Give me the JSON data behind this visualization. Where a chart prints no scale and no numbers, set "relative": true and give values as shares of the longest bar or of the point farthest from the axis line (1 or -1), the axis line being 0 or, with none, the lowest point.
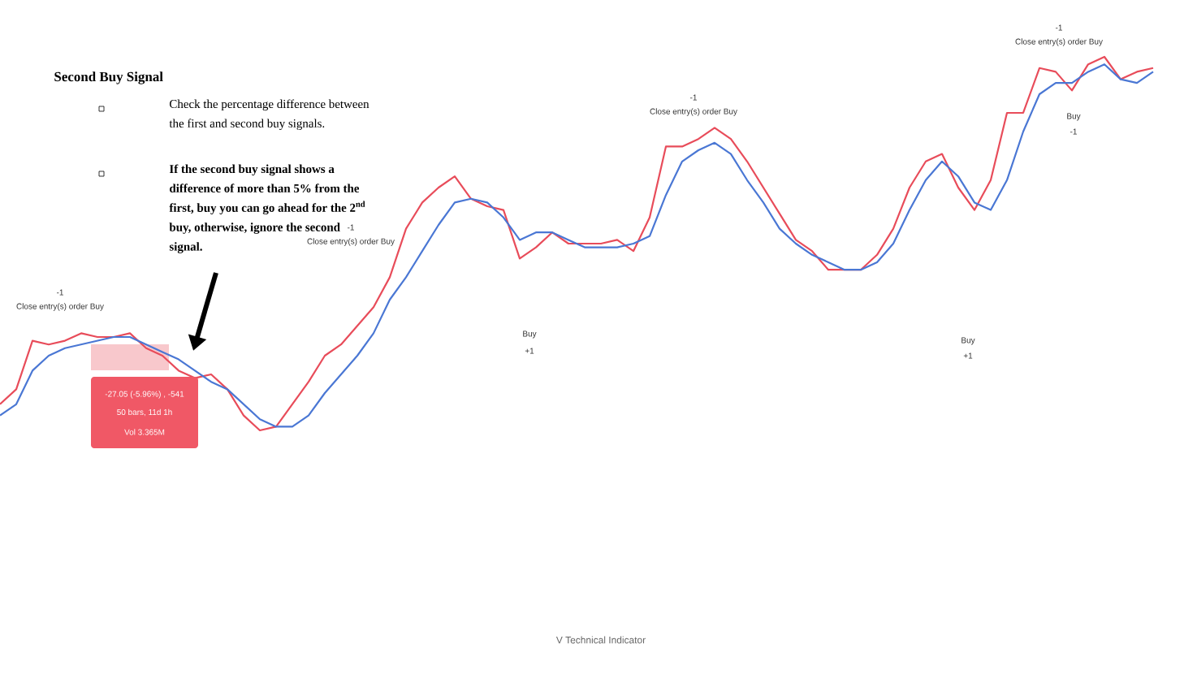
{
  "chart_data": {
    "type": "line",
    "relative": true,
    "categories": [
      null,
      null,
      null,
      null,
      null,
      null,
      null,
      null,
      null,
      null,
      null,
      null,
      null,
      null,
      null,
      null,
      null,
      null,
      null,
      null,
      null,
      null,
      null,
      null,
      null,
      null,
      null,
      null,
      null,
      null,
      null,
      null,
      null,
      null,
      null,
      null,
      null,
      null,
      null,
      null,
      null,
      null,
      null,
      null,
      null,
      null,
      null,
      null,
      null,
      null,
      null,
      null,
      null,
      null,
      null,
      null,
      null,
      null,
      null,
      null,
      null,
      null,
      null,
      null,
      null,
      null,
      null,
      null,
      null,
      null,
      null,
      null
    ],
    "series": [
      {
        "color": "#e84c5a",
        "values": [
          0.07,
          0.11,
          0.24,
          0.23,
          0.24,
          0.26,
          0.25,
          0.25,
          0.26,
          0.22,
          0.2,
          0.16,
          0.14,
          0.15,
          0.11,
          0.04,
          0,
          0.01,
          0.07,
          0.13,
          0.2,
          0.23,
          0.28,
          0.33,
          0.41,
          0.54,
          0.61,
          0.65,
          0.68,
          0.62,
          0.6,
          0.59,
          0.46,
          0.49,
          0.53,
          0.5,
          0.5,
          0.5,
          0.51,
          0.48,
          0.57,
          0.76,
          0.76,
          0.78,
          0.81,
          0.78,
          0.72,
          0.65,
          0.58,
          0.51,
          0.48,
          0.43,
          0.43,
          0.43,
          0.47,
          0.54,
          0.65,
          0.72,
          0.74,
          0.65,
          0.59,
          0.67,
          0.85,
          0.85,
          0.97,
          0.96,
          0.91,
          0.98,
          1,
          0.94,
          0.96,
          0.97
        ]
      },
      {
        "color": "#4a77d4",
        "values": [
          0.04,
          0.07,
          0.16,
          0.2,
          0.22,
          0.23,
          0.24,
          0.25,
          0.25,
          0.23,
          0.21,
          0.19,
          0.16,
          0.13,
          0.11,
          0.07,
          0.03,
          0.01,
          0.01,
          0.04,
          0.1,
          0.15,
          0.2,
          0.26,
          0.35,
          0.41,
          0.48,
          0.55,
          0.61,
          0.62,
          0.61,
          0.57,
          0.51,
          0.53,
          0.53,
          0.51,
          0.49,
          0.49,
          0.49,
          0.5,
          0.52,
          0.63,
          0.72,
          0.75,
          0.77,
          0.74,
          0.67,
          0.61,
          0.54,
          0.5,
          0.47,
          0.45,
          0.43,
          0.43,
          0.45,
          0.5,
          0.59,
          0.67,
          0.72,
          0.68,
          0.61,
          0.59,
          0.67,
          0.8,
          0.9,
          0.93,
          0.93,
          0.96,
          0.98,
          0.94,
          0.93,
          0.96
        ]
      }
    ],
    "annotations": [
      "Second Buy Signal",
      "Check the percentage difference between the first and second buy signals.",
      "If the second buy signal shows a difference of more than 5% from the first, buy you can go ahead for the 2$^{nd}$ buy, otherwise, ignore the second signal.",
      "-27.05 (-5.96%) , -541",
      "50 bars, 11d 1h",
      "Vol 3.365M",
      "-1",
      "Close entry(s) order Buy",
      "-1",
      "Close entry(s) order Buy",
      "Buy",
      "+1",
      "-1",
      "Close entry(s) order Buy",
      "Buy",
      "+1",
      "-1",
      "Close entry(s) order Buy",
      "Buy",
      "-1",
      "V Technical Indicator"
    ]
  }
}
